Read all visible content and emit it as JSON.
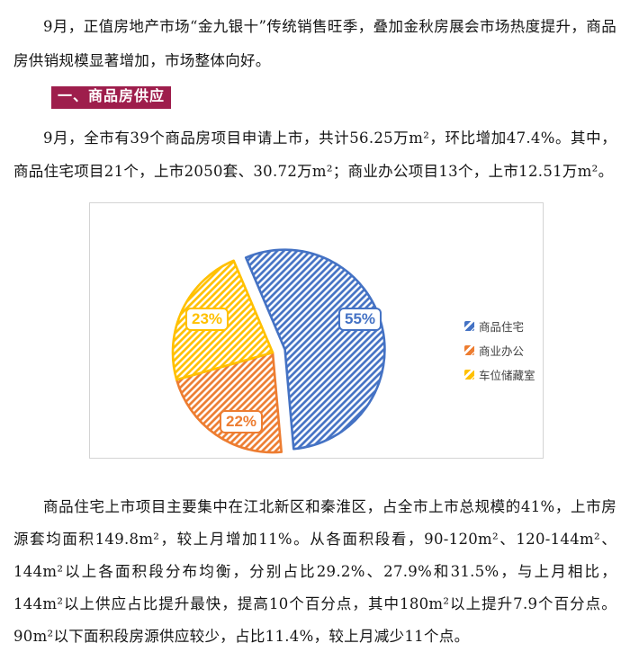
{
  "page": {
    "paragraph1": "9月，正值房地产市场“金九银十”传统销售旺季，叠加金秋房展会市场热度提升，商品房供销规模显著增加，市场整体向好。",
    "section1_title": "一、商品房供应",
    "paragraph2": "9月，全市有39个商品房项目申请上市，共计56.25万m²，环比增加47.4%。其中，商品住宅项目21个，上市2050套、30.72万m²；商业办公项目13个，上市12.51万m²。",
    "paragraph3": "商品住宅上市项目主要集中在江北新区和秦淮区，占全市上市总规模的41%，上市房源套均面积149.8m²，较上月增加11%。从各面积段看，90-120m²、120-144m²、144m²以上各面积段分布均衡，分别占比29.2%、27.9%和31.5%，与上月相比，144m²以上供应占比提升最快，提高10个百分点，其中180m²以上提升7.9个百分点。90m²以下面积段房源供应较少，占比11.4%，较上月减少11个点。"
  },
  "colors": {
    "banner_background": "#9E1E4C",
    "chart_border": "#D4D4D4",
    "blue": "#4472C4",
    "orange": "#ED7D31",
    "yellow": "#FFC000",
    "legend_text": "#3F3F3F"
  },
  "chart_data": {
    "type": "pie",
    "title": "",
    "categories": [
      "商品住宅",
      "商业办公",
      "车位储藏室"
    ],
    "values": [
      55,
      22,
      23
    ],
    "data_labels": [
      "55%",
      "22%",
      "23%"
    ],
    "series": [
      {
        "name": "商品住宅",
        "value": 55,
        "label": "55%",
        "color": "#4472C4",
        "exploded": true
      },
      {
        "name": "商业办公",
        "value": 22,
        "label": "22%",
        "color": "#ED7D31",
        "exploded": false
      },
      {
        "name": "车位储藏室",
        "value": 23,
        "label": "23%",
        "color": "#FFC000",
        "exploded": false
      }
    ],
    "legend_position": "right",
    "legend_marker": "hatched-square-icon",
    "fill_style": "diagonal-hatch",
    "start_angle_deg": -23
  }
}
